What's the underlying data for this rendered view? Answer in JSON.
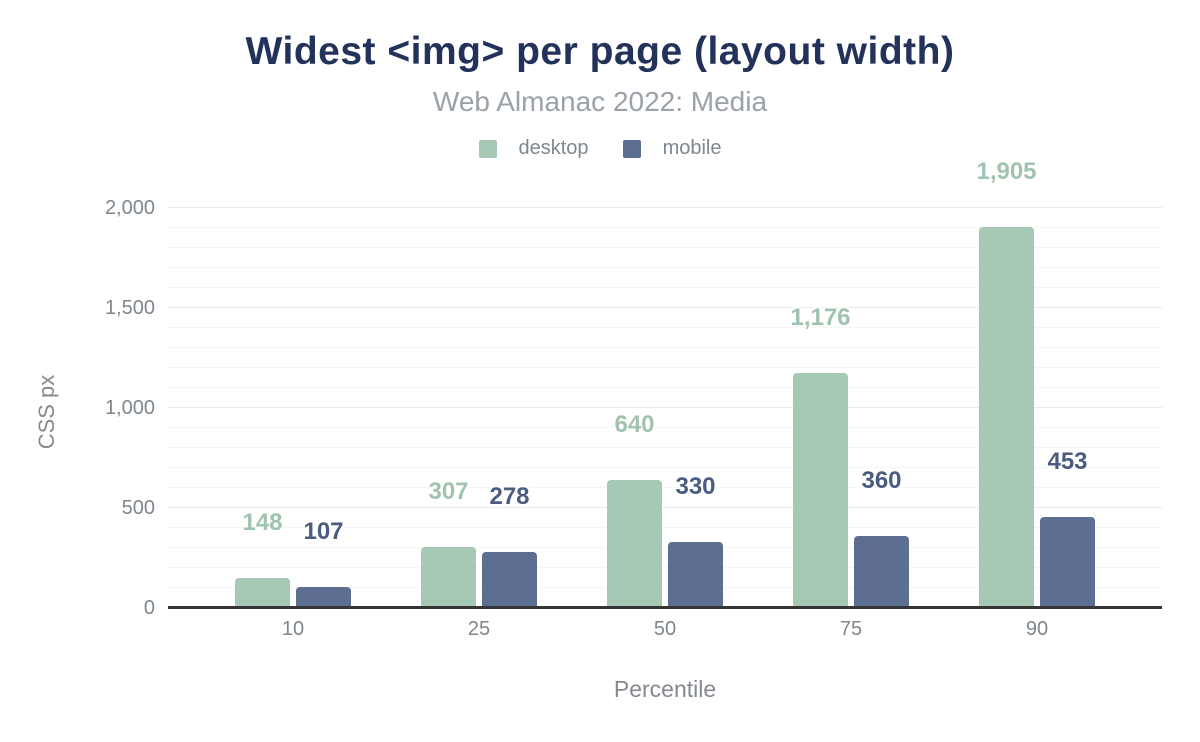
{
  "chart": {
    "title": "Widest <img> per page (layout width)",
    "subtitle": "Web Almanac 2022: Media",
    "xlabel": "Percentile",
    "ylabel": "CSS px"
  },
  "colors": {
    "title": "#22325a",
    "subtitle_text": "#9aa1a8",
    "axis_text": "#7e868e",
    "axis_line": "#363636",
    "gridline_major": "#e8eaea",
    "gridline_minor": "#f4f5f5",
    "desktop": "#a7c8b5",
    "mobile": "#5c6e91",
    "desktop_label": "#a0c3af",
    "mobile_label": "#4a5d81"
  },
  "chart_data": {
    "type": "bar",
    "title": "Widest <img> per page (layout width)",
    "subtitle": "Web Almanac 2022: Media",
    "xlabel": "Percentile",
    "ylabel": "CSS px",
    "categories": [
      "10",
      "25",
      "50",
      "75",
      "90"
    ],
    "series": [
      {
        "name": "desktop",
        "color": "#a7c8b5",
        "label_color": "#a0c3af",
        "values": [
          148,
          307,
          640,
          1176,
          1905
        ]
      },
      {
        "name": "mobile",
        "color": "#5c6e91",
        "label_color": "#4a5d81",
        "values": [
          107,
          278,
          330,
          360,
          453
        ]
      }
    ],
    "ylim": [
      0,
      2000
    ],
    "y_major_step": 500,
    "y_minor_step": 100,
    "y_tick_labels": [
      "0",
      "500",
      "1,000",
      "1,500",
      "2,000"
    ],
    "grid": "on",
    "legend_position": "top-center",
    "data_labels": "above-bars"
  }
}
